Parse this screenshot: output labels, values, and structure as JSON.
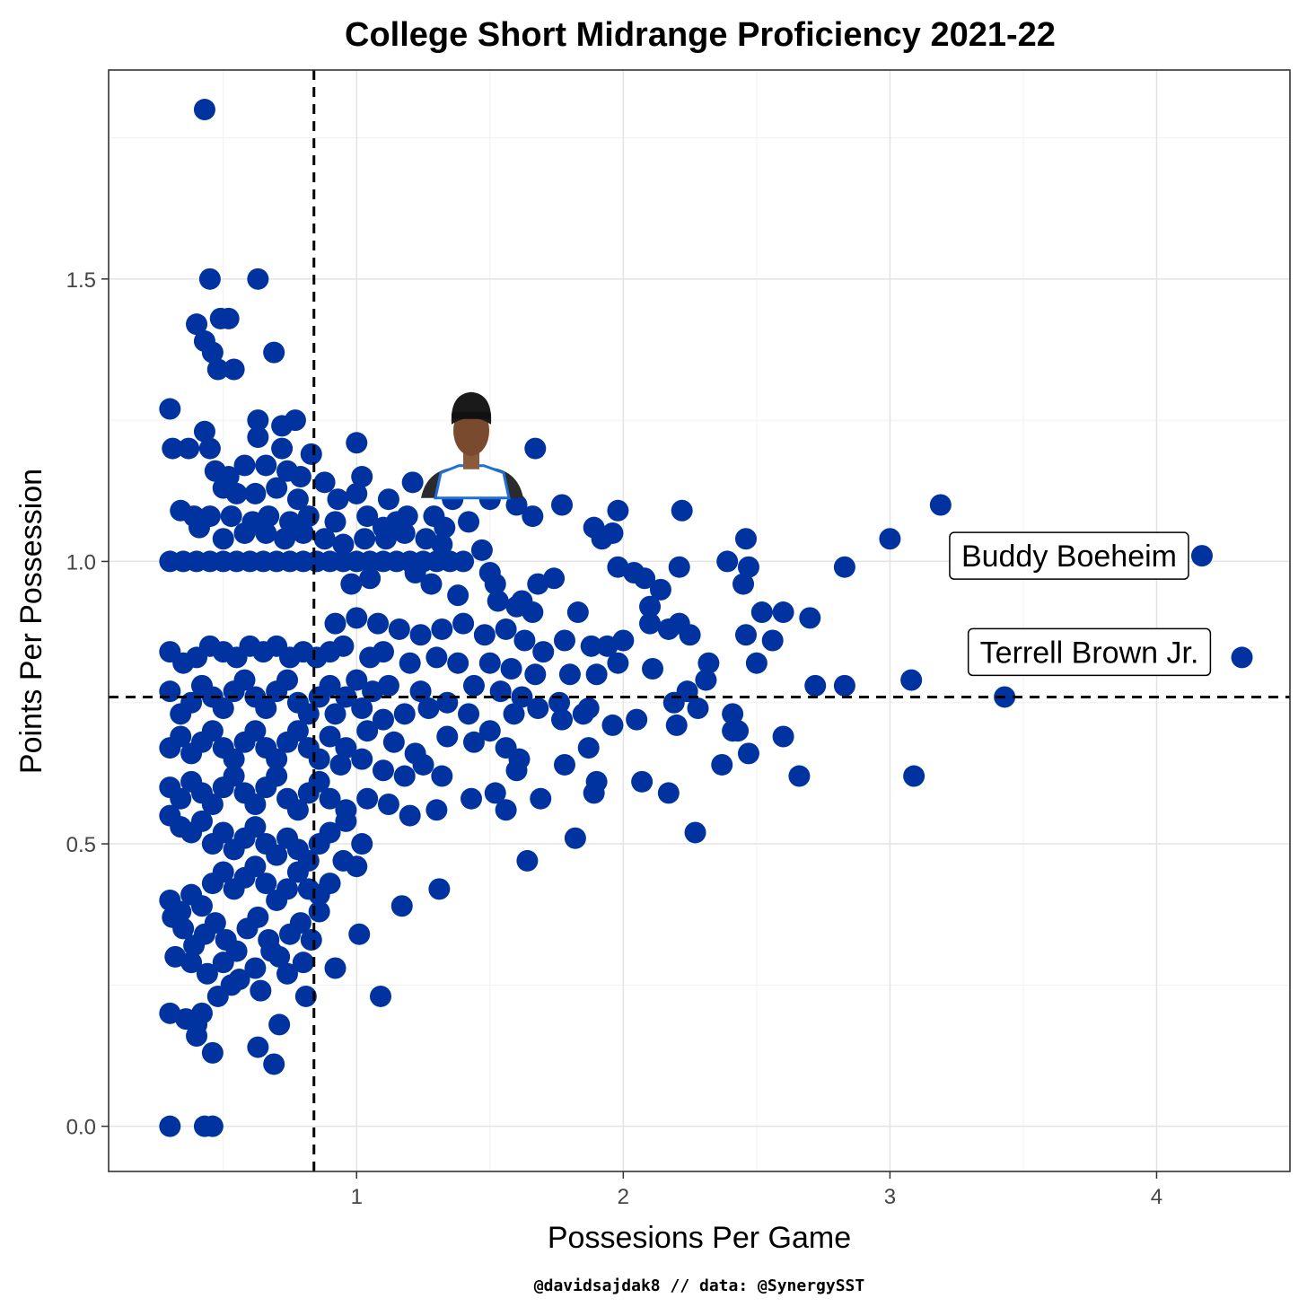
{
  "chart_data": {
    "type": "scatter",
    "title": "College Short Midrange Proficiency 2021-22",
    "xlabel": "Possesions Per Game",
    "ylabel": "Points Per Possession",
    "caption": "@davidsajdak8 // data: @SynergySST",
    "xlim": [
      0.07,
      4.5
    ],
    "ylim": [
      -0.08,
      1.87
    ],
    "x_ticks": [
      {
        "value": 1,
        "label": "1"
      },
      {
        "value": 2,
        "label": "2"
      },
      {
        "value": 3,
        "label": "3"
      },
      {
        "value": 4,
        "label": "4"
      }
    ],
    "y_ticks": [
      {
        "value": 0.0,
        "label": "0.0"
      },
      {
        "value": 0.5,
        "label": "0.5"
      },
      {
        "value": 1.0,
        "label": "1.0"
      },
      {
        "value": 1.5,
        "label": "1.5"
      }
    ],
    "grid": true,
    "point_color": "#0033A0",
    "reference_lines": {
      "x": 0.84,
      "y": 0.76
    },
    "highlighted": [
      {
        "label": "Buddy Boeheim",
        "x": 4.17,
        "y": 1.01
      },
      {
        "label": "Terrell Brown Jr.",
        "x": 4.32,
        "y": 0.83
      }
    ],
    "headshot_marker": {
      "x": 1.43,
      "y": 1.16
    },
    "points": [
      [
        0.43,
        1.8
      ],
      [
        0.45,
        1.5
      ],
      [
        0.63,
        1.5
      ],
      [
        0.4,
        1.42
      ],
      [
        0.49,
        1.43
      ],
      [
        0.52,
        1.43
      ],
      [
        0.43,
        1.39
      ],
      [
        0.46,
        1.37
      ],
      [
        0.69,
        1.37
      ],
      [
        0.48,
        1.34
      ],
      [
        0.54,
        1.34
      ],
      [
        0.3,
        1.27
      ],
      [
        0.43,
        1.23
      ],
      [
        0.63,
        1.25
      ],
      [
        0.63,
        1.22
      ],
      [
        0.72,
        1.24
      ],
      [
        0.77,
        1.25
      ],
      [
        0.31,
        1.2
      ],
      [
        0.37,
        1.2
      ],
      [
        0.45,
        1.2
      ],
      [
        0.72,
        1.2
      ],
      [
        0.83,
        1.19
      ],
      [
        1.0,
        1.21
      ],
      [
        1.67,
        1.2
      ],
      [
        0.47,
        1.16
      ],
      [
        0.52,
        1.15
      ],
      [
        0.58,
        1.17
      ],
      [
        0.66,
        1.17
      ],
      [
        0.74,
        1.16
      ],
      [
        0.79,
        1.15
      ],
      [
        0.88,
        1.14
      ],
      [
        1.02,
        1.15
      ],
      [
        1.21,
        1.14
      ],
      [
        0.5,
        1.13
      ],
      [
        0.55,
        1.12
      ],
      [
        0.62,
        1.12
      ],
      [
        0.7,
        1.13
      ],
      [
        0.78,
        1.11
      ],
      [
        0.93,
        1.11
      ],
      [
        1.0,
        1.12
      ],
      [
        1.12,
        1.11
      ],
      [
        1.36,
        1.11
      ],
      [
        1.5,
        1.11
      ],
      [
        1.6,
        1.1
      ],
      [
        1.77,
        1.1
      ],
      [
        1.98,
        1.09
      ],
      [
        2.22,
        1.09
      ],
      [
        3.19,
        1.1
      ],
      [
        0.34,
        1.09
      ],
      [
        0.39,
        1.08
      ],
      [
        0.45,
        1.08
      ],
      [
        0.53,
        1.08
      ],
      [
        0.61,
        1.07
      ],
      [
        0.67,
        1.08
      ],
      [
        0.75,
        1.07
      ],
      [
        0.82,
        1.08
      ],
      [
        0.92,
        1.07
      ],
      [
        1.04,
        1.08
      ],
      [
        1.1,
        1.06
      ],
      [
        1.15,
        1.07
      ],
      [
        1.19,
        1.08
      ],
      [
        1.29,
        1.08
      ],
      [
        1.33,
        1.06
      ],
      [
        1.42,
        1.07
      ],
      [
        1.66,
        1.08
      ],
      [
        1.89,
        1.06
      ],
      [
        1.96,
        1.05
      ],
      [
        3.0,
        1.04
      ],
      [
        2.46,
        1.04
      ],
      [
        0.41,
        1.06
      ],
      [
        0.5,
        1.04
      ],
      [
        0.58,
        1.05
      ],
      [
        0.66,
        1.05
      ],
      [
        0.73,
        1.04
      ],
      [
        0.8,
        1.05
      ],
      [
        0.88,
        1.04
      ],
      [
        0.95,
        1.03
      ],
      [
        1.03,
        1.04
      ],
      [
        1.11,
        1.04
      ],
      [
        1.18,
        1.05
      ],
      [
        1.26,
        1.04
      ],
      [
        1.32,
        1.03
      ],
      [
        1.47,
        1.02
      ],
      [
        1.92,
        1.04
      ],
      [
        0.3,
        1.0
      ],
      [
        0.35,
        1.0
      ],
      [
        0.4,
        1.0
      ],
      [
        0.45,
        1.0
      ],
      [
        0.5,
        1.0
      ],
      [
        0.55,
        1.0
      ],
      [
        0.6,
        1.0
      ],
      [
        0.65,
        1.0
      ],
      [
        0.7,
        1.0
      ],
      [
        0.75,
        1.0
      ],
      [
        0.8,
        1.0
      ],
      [
        0.85,
        1.0
      ],
      [
        0.9,
        1.0
      ],
      [
        0.95,
        1.0
      ],
      [
        1.0,
        1.0
      ],
      [
        1.05,
        1.0
      ],
      [
        1.1,
        1.0
      ],
      [
        1.15,
        1.0
      ],
      [
        1.2,
        1.0
      ],
      [
        1.25,
        1.0
      ],
      [
        1.3,
        1.0
      ],
      [
        1.35,
        1.0
      ],
      [
        1.4,
        1.0
      ],
      [
        2.39,
        1.0
      ],
      [
        2.47,
        0.99
      ],
      [
        2.83,
        0.99
      ],
      [
        2.21,
        0.99
      ],
      [
        1.98,
        0.99
      ],
      [
        2.04,
        0.98
      ],
      [
        1.5,
        0.98
      ],
      [
        1.52,
        0.96
      ],
      [
        1.74,
        0.97
      ],
      [
        1.68,
        0.96
      ],
      [
        2.08,
        0.97
      ],
      [
        2.14,
        0.95
      ],
      [
        2.45,
        0.96
      ],
      [
        1.22,
        0.98
      ],
      [
        1.05,
        0.97
      ],
      [
        0.98,
        0.96
      ],
      [
        1.28,
        0.96
      ],
      [
        1.38,
        0.94
      ],
      [
        1.53,
        0.93
      ],
      [
        1.6,
        0.92
      ],
      [
        1.62,
        0.93
      ],
      [
        1.66,
        0.91
      ],
      [
        1.83,
        0.91
      ],
      [
        2.1,
        0.92
      ],
      [
        2.52,
        0.91
      ],
      [
        2.6,
        0.91
      ],
      [
        2.7,
        0.9
      ],
      [
        2.56,
        0.86
      ],
      [
        2.5,
        0.82
      ],
      [
        2.46,
        0.87
      ],
      [
        2.25,
        0.87
      ],
      [
        2.21,
        0.89
      ],
      [
        2.17,
        0.88
      ],
      [
        2.1,
        0.89
      ],
      [
        2.0,
        0.86
      ],
      [
        1.94,
        0.85
      ],
      [
        1.88,
        0.85
      ],
      [
        1.78,
        0.86
      ],
      [
        1.7,
        0.84
      ],
      [
        1.63,
        0.86
      ],
      [
        1.56,
        0.88
      ],
      [
        1.48,
        0.87
      ],
      [
        1.4,
        0.89
      ],
      [
        1.32,
        0.88
      ],
      [
        1.24,
        0.87
      ],
      [
        1.16,
        0.88
      ],
      [
        1.08,
        0.89
      ],
      [
        1.0,
        0.9
      ],
      [
        0.92,
        0.89
      ],
      [
        0.3,
        0.84
      ],
      [
        0.35,
        0.82
      ],
      [
        0.4,
        0.83
      ],
      [
        0.45,
        0.85
      ],
      [
        0.5,
        0.84
      ],
      [
        0.55,
        0.83
      ],
      [
        0.6,
        0.85
      ],
      [
        0.65,
        0.84
      ],
      [
        0.7,
        0.85
      ],
      [
        0.75,
        0.83
      ],
      [
        0.8,
        0.84
      ],
      [
        0.85,
        0.83
      ],
      [
        0.9,
        0.84
      ],
      [
        0.95,
        0.85
      ],
      [
        1.05,
        0.83
      ],
      [
        1.1,
        0.84
      ],
      [
        1.2,
        0.82
      ],
      [
        1.3,
        0.83
      ],
      [
        1.38,
        0.82
      ],
      [
        1.5,
        0.82
      ],
      [
        1.58,
        0.81
      ],
      [
        1.67,
        0.8
      ],
      [
        1.8,
        0.8
      ],
      [
        1.9,
        0.8
      ],
      [
        1.98,
        0.82
      ],
      [
        2.11,
        0.81
      ],
      [
        2.32,
        0.82
      ],
      [
        2.31,
        0.79
      ],
      [
        2.72,
        0.78
      ],
      [
        2.83,
        0.78
      ],
      [
        3.08,
        0.79
      ],
      [
        2.19,
        0.75
      ],
      [
        2.24,
        0.77
      ],
      [
        2.28,
        0.74
      ],
      [
        2.41,
        0.73
      ],
      [
        2.43,
        0.7
      ],
      [
        2.6,
        0.69
      ],
      [
        2.37,
        0.64
      ],
      [
        2.47,
        0.66
      ],
      [
        2.2,
        0.71
      ],
      [
        2.05,
        0.72
      ],
      [
        1.96,
        0.71
      ],
      [
        1.85,
        0.73
      ],
      [
        1.77,
        0.72
      ],
      [
        1.68,
        0.74
      ],
      [
        1.59,
        0.73
      ],
      [
        1.5,
        0.7
      ],
      [
        1.42,
        0.73
      ],
      [
        1.34,
        0.75
      ],
      [
        1.27,
        0.74
      ],
      [
        1.18,
        0.73
      ],
      [
        1.1,
        0.72
      ],
      [
        1.02,
        0.74
      ],
      [
        0.92,
        0.73
      ],
      [
        0.3,
        0.77
      ],
      [
        0.34,
        0.73
      ],
      [
        0.38,
        0.75
      ],
      [
        0.42,
        0.78
      ],
      [
        0.46,
        0.76
      ],
      [
        0.5,
        0.74
      ],
      [
        0.54,
        0.77
      ],
      [
        0.58,
        0.79
      ],
      [
        0.62,
        0.76
      ],
      [
        0.66,
        0.74
      ],
      [
        0.7,
        0.77
      ],
      [
        0.74,
        0.79
      ],
      [
        0.78,
        0.75
      ],
      [
        0.82,
        0.73
      ],
      [
        0.86,
        0.76
      ],
      [
        0.9,
        0.78
      ],
      [
        0.96,
        0.76
      ],
      [
        1.0,
        0.79
      ],
      [
        1.06,
        0.77
      ],
      [
        1.12,
        0.78
      ],
      [
        1.24,
        0.77
      ],
      [
        1.44,
        0.78
      ],
      [
        1.54,
        0.77
      ],
      [
        1.62,
        0.76
      ],
      [
        1.76,
        0.75
      ],
      [
        1.87,
        0.74
      ],
      [
        3.43,
        0.76
      ],
      [
        3.09,
        0.62
      ],
      [
        2.66,
        0.62
      ],
      [
        2.07,
        0.61
      ],
      [
        2.17,
        0.59
      ],
      [
        1.89,
        0.59
      ],
      [
        1.9,
        0.61
      ],
      [
        1.69,
        0.58
      ],
      [
        1.78,
        0.64
      ],
      [
        1.61,
        0.65
      ],
      [
        1.6,
        0.63
      ],
      [
        1.52,
        0.59
      ],
      [
        1.43,
        0.58
      ],
      [
        1.32,
        0.62
      ],
      [
        1.25,
        0.64
      ],
      [
        1.18,
        0.62
      ],
      [
        1.1,
        0.63
      ],
      [
        1.02,
        0.65
      ],
      [
        0.94,
        0.64
      ],
      [
        0.3,
        0.67
      ],
      [
        0.34,
        0.69
      ],
      [
        0.38,
        0.66
      ],
      [
        0.42,
        0.68
      ],
      [
        0.46,
        0.7
      ],
      [
        0.5,
        0.67
      ],
      [
        0.54,
        0.65
      ],
      [
        0.58,
        0.68
      ],
      [
        0.62,
        0.7
      ],
      [
        0.66,
        0.67
      ],
      [
        0.7,
        0.65
      ],
      [
        0.74,
        0.68
      ],
      [
        0.78,
        0.7
      ],
      [
        0.82,
        0.67
      ],
      [
        0.86,
        0.65
      ],
      [
        0.9,
        0.69
      ],
      [
        0.96,
        0.67
      ],
      [
        1.04,
        0.7
      ],
      [
        1.14,
        0.68
      ],
      [
        1.22,
        0.66
      ],
      [
        1.34,
        0.69
      ],
      [
        1.44,
        0.68
      ],
      [
        1.56,
        0.67
      ],
      [
        1.87,
        0.67
      ],
      [
        2.41,
        0.7
      ],
      [
        0.3,
        0.6
      ],
      [
        0.34,
        0.58
      ],
      [
        0.38,
        0.61
      ],
      [
        0.42,
        0.59
      ],
      [
        0.46,
        0.57
      ],
      [
        0.5,
        0.6
      ],
      [
        0.54,
        0.62
      ],
      [
        0.58,
        0.59
      ],
      [
        0.62,
        0.57
      ],
      [
        0.66,
        0.6
      ],
      [
        0.7,
        0.62
      ],
      [
        0.74,
        0.58
      ],
      [
        0.78,
        0.56
      ],
      [
        0.82,
        0.59
      ],
      [
        0.86,
        0.61
      ],
      [
        0.9,
        0.58
      ],
      [
        0.96,
        0.56
      ],
      [
        1.04,
        0.58
      ],
      [
        1.12,
        0.57
      ],
      [
        1.2,
        0.55
      ],
      [
        1.3,
        0.56
      ],
      [
        1.56,
        0.56
      ],
      [
        1.82,
        0.51
      ],
      [
        2.27,
        0.52
      ],
      [
        1.64,
        0.47
      ],
      [
        1.31,
        0.42
      ],
      [
        1.17,
        0.39
      ],
      [
        1.09,
        0.23
      ],
      [
        1.01,
        0.34
      ],
      [
        0.92,
        0.28
      ],
      [
        0.3,
        0.55
      ],
      [
        0.34,
        0.53
      ],
      [
        0.38,
        0.52
      ],
      [
        0.42,
        0.54
      ],
      [
        0.46,
        0.5
      ],
      [
        0.5,
        0.52
      ],
      [
        0.54,
        0.49
      ],
      [
        0.58,
        0.51
      ],
      [
        0.62,
        0.53
      ],
      [
        0.66,
        0.5
      ],
      [
        0.7,
        0.48
      ],
      [
        0.74,
        0.51
      ],
      [
        0.78,
        0.49
      ],
      [
        0.82,
        0.47
      ],
      [
        0.86,
        0.5
      ],
      [
        0.9,
        0.52
      ],
      [
        0.96,
        0.54
      ],
      [
        1.02,
        0.5
      ],
      [
        1.0,
        0.46
      ],
      [
        0.95,
        0.47
      ],
      [
        0.9,
        0.43
      ],
      [
        0.86,
        0.41
      ],
      [
        0.3,
        0.4
      ],
      [
        0.34,
        0.38
      ],
      [
        0.38,
        0.41
      ],
      [
        0.42,
        0.39
      ],
      [
        0.46,
        0.43
      ],
      [
        0.5,
        0.45
      ],
      [
        0.54,
        0.42
      ],
      [
        0.58,
        0.44
      ],
      [
        0.62,
        0.46
      ],
      [
        0.66,
        0.43
      ],
      [
        0.7,
        0.4
      ],
      [
        0.74,
        0.42
      ],
      [
        0.78,
        0.45
      ],
      [
        0.82,
        0.42
      ],
      [
        0.86,
        0.38
      ],
      [
        0.31,
        0.37
      ],
      [
        0.35,
        0.35
      ],
      [
        0.39,
        0.32
      ],
      [
        0.43,
        0.34
      ],
      [
        0.47,
        0.36
      ],
      [
        0.51,
        0.33
      ],
      [
        0.55,
        0.31
      ],
      [
        0.59,
        0.35
      ],
      [
        0.63,
        0.37
      ],
      [
        0.67,
        0.33
      ],
      [
        0.71,
        0.3
      ],
      [
        0.75,
        0.34
      ],
      [
        0.79,
        0.36
      ],
      [
        0.83,
        0.33
      ],
      [
        0.32,
        0.3
      ],
      [
        0.38,
        0.29
      ],
      [
        0.44,
        0.27
      ],
      [
        0.5,
        0.29
      ],
      [
        0.56,
        0.26
      ],
      [
        0.62,
        0.28
      ],
      [
        0.68,
        0.31
      ],
      [
        0.74,
        0.27
      ],
      [
        0.8,
        0.29
      ],
      [
        0.48,
        0.23
      ],
      [
        0.53,
        0.25
      ],
      [
        0.64,
        0.24
      ],
      [
        0.81,
        0.23
      ],
      [
        0.3,
        0.2
      ],
      [
        0.36,
        0.19
      ],
      [
        0.4,
        0.18
      ],
      [
        0.42,
        0.2
      ],
      [
        0.4,
        0.16
      ],
      [
        0.71,
        0.18
      ],
      [
        0.63,
        0.14
      ],
      [
        0.46,
        0.13
      ],
      [
        0.69,
        0.11
      ],
      [
        0.3,
        0.0
      ],
      [
        0.43,
        0.0
      ],
      [
        0.46,
        0.0
      ]
    ]
  }
}
